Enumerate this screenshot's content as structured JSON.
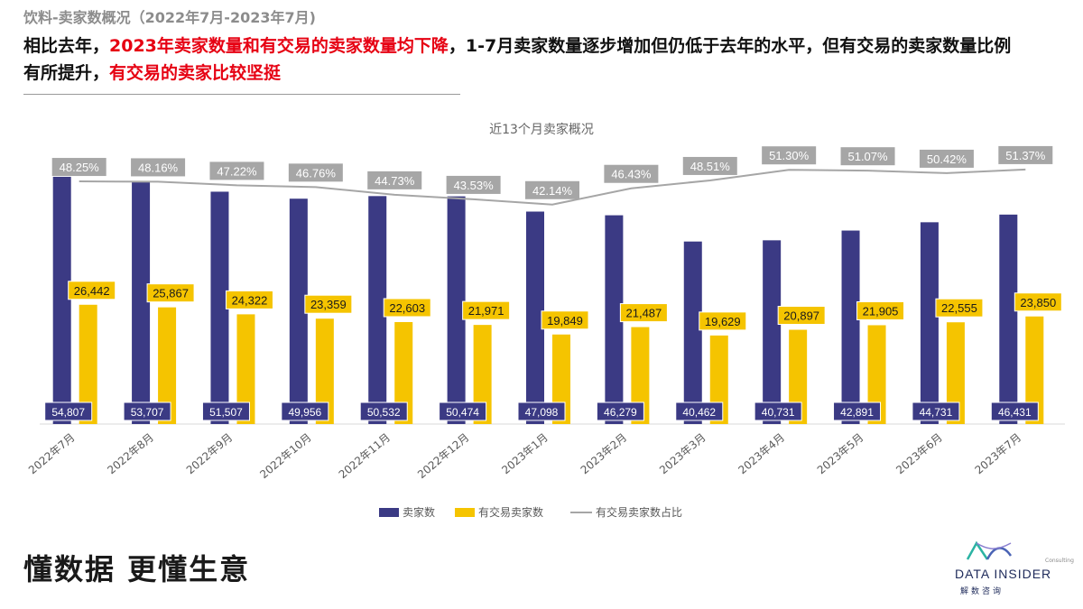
{
  "header": {
    "supertitle": "饮料-卖家数概况（2022年7月-2023年7月)",
    "headline": [
      {
        "text": "相比去年，",
        "highlight": false
      },
      {
        "text": "2023年卖家数量和有交易的卖家数量均下降",
        "highlight": true
      },
      {
        "text": "，1-7月卖家数量逐步增加但仍低于去年的水平，但有交易的卖家数量比例有所提升，",
        "highlight": false
      },
      {
        "text": "有交易的卖家比较坚挺",
        "highlight": true
      }
    ],
    "highlight_color": "#e60012"
  },
  "footer": {
    "slogan": "懂数据 更懂生意",
    "brand_name": "DATA INSIDER",
    "brand_sub": "解数咨询",
    "brand_small": "Consulting"
  },
  "colors": {
    "sellers": "#3b3a84",
    "trading": "#f5c400",
    "ratio_line": "#a6a6a6",
    "ratio_label_bg": "#a6a6a6"
  },
  "chart_data": {
    "type": "bar",
    "title": "近13个月卖家概况",
    "categories": [
      "2022年7月",
      "2022年8月",
      "2022年9月",
      "2022年10月",
      "2022年11月",
      "2022年12月",
      "2023年1月",
      "2023年2月",
      "2023年3月",
      "2023年4月",
      "2023年5月",
      "2023年6月",
      "2023年7月"
    ],
    "series": [
      {
        "name": "卖家数",
        "kind": "bar",
        "values": [
          54807,
          53707,
          51507,
          49956,
          50532,
          50474,
          47098,
          46279,
          40462,
          40731,
          42891,
          44731,
          46431
        ],
        "labels": [
          "54,807",
          "53,707",
          "51,507",
          "49,956",
          "50,532",
          "50,474",
          "47,098",
          "46,279",
          "40,462",
          "40,731",
          "42,891",
          "44,731",
          "46,431"
        ]
      },
      {
        "name": "有交易卖家数",
        "kind": "bar",
        "values": [
          26442,
          25867,
          24322,
          23359,
          22603,
          21971,
          19849,
          21487,
          19629,
          20897,
          21905,
          22555,
          23850
        ],
        "labels": [
          "26,442",
          "25,867",
          "24,322",
          "23,359",
          "22,603",
          "21,971",
          "19,849",
          "21,487",
          "19,629",
          "20,897",
          "21,905",
          "22,555",
          "23,850"
        ]
      },
      {
        "name": "有交易卖家数占比",
        "kind": "line",
        "values": [
          48.25,
          48.16,
          47.22,
          46.76,
          44.73,
          43.53,
          42.14,
          46.43,
          48.51,
          51.3,
          51.07,
          50.42,
          51.37
        ],
        "labels": [
          "48.25%",
          "48.16%",
          "47.22%",
          "46.76%",
          "44.73%",
          "43.53%",
          "42.14%",
          "46.43%",
          "48.51%",
          "51.30%",
          "51.07%",
          "50.42%",
          "51.37%"
        ]
      }
    ],
    "legend_position": "bottom",
    "grid": false
  }
}
